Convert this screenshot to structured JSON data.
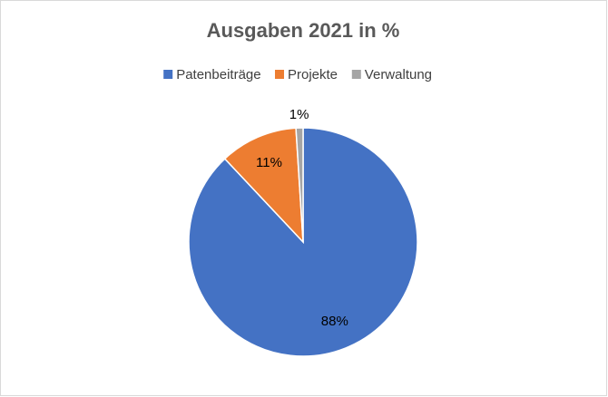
{
  "chart_data": {
    "type": "pie",
    "title": "Ausgaben 2021 in %",
    "categories": [
      "Patenbeiträge",
      "Projekte",
      "Verwaltung"
    ],
    "values": [
      88,
      11,
      1
    ],
    "value_labels": [
      "88%",
      "11%",
      "1%"
    ],
    "colors": [
      "#4472c4",
      "#ed7d31",
      "#a5a5a5"
    ],
    "legend": "top"
  }
}
